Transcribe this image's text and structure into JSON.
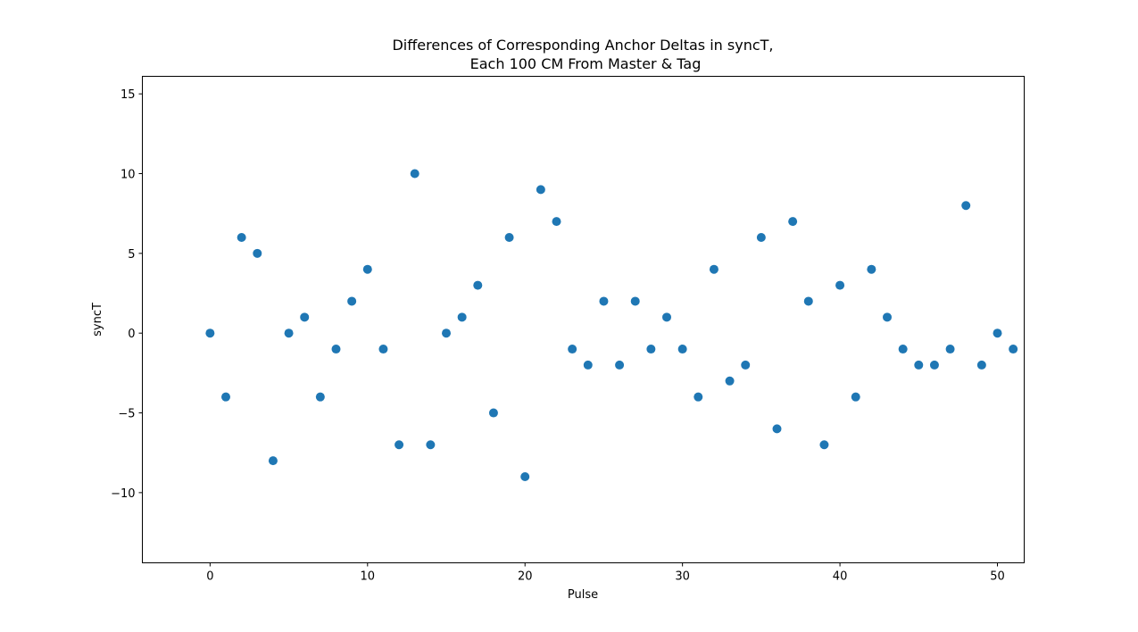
{
  "chart_data": {
    "type": "scatter",
    "title_lines": [
      "Differences of Corresponding Anchor Deltas in syncT,",
      "Each 100 CM From Master & Tag"
    ],
    "xlabel": "Pulse",
    "ylabel": "syncT",
    "xlim": [
      -4.3,
      51.7
    ],
    "ylim": [
      -14.4,
      16.1
    ],
    "xticks": [
      0,
      10,
      20,
      30,
      40,
      50
    ],
    "yticks": [
      -10,
      -5,
      0,
      5,
      10,
      15
    ],
    "xtick_labels": [
      "0",
      "10",
      "20",
      "30",
      "40",
      "50"
    ],
    "ytick_labels": [
      "−10",
      "−5",
      "0",
      "5",
      "10",
      "15"
    ],
    "grid": false,
    "marker_color": "#1f77b4",
    "x": [
      0,
      1,
      2,
      3,
      4,
      5,
      6,
      7,
      8,
      9,
      10,
      11,
      12,
      13,
      14,
      15,
      16,
      17,
      18,
      19,
      20,
      21,
      22,
      23,
      24,
      25,
      26,
      27,
      28,
      29,
      30,
      31,
      32,
      33,
      34,
      35,
      36,
      37,
      38,
      39,
      40,
      41,
      42,
      43,
      44,
      45,
      46,
      47,
      48,
      49,
      50,
      51
    ],
    "y": [
      0,
      -4,
      6,
      5,
      -8,
      0,
      1,
      -4,
      -1,
      2,
      4,
      -1,
      -7,
      10,
      -7,
      0,
      1,
      3,
      -5,
      6,
      -9,
      9,
      7,
      -1,
      -2,
      2,
      -2,
      2,
      -1,
      1,
      -1,
      -4,
      4,
      -3,
      -2,
      6,
      -6,
      7,
      2,
      -7,
      3,
      -4,
      4,
      1,
      -1,
      -2,
      -2,
      -1,
      8,
      -2,
      0,
      -1
    ]
  }
}
